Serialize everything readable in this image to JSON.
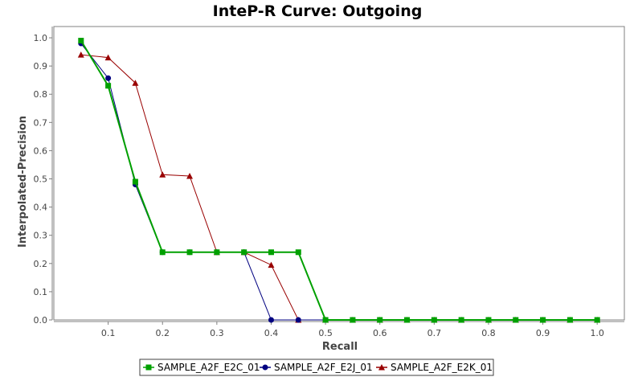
{
  "chart_data": {
    "type": "line",
    "title": "InteP-R Curve: Outgoing",
    "xlabel": "Recall",
    "ylabel": "Interpolated-Precision",
    "xlim": [
      0.0,
      1.05
    ],
    "ylim": [
      0.0,
      1.04
    ],
    "xticks": [
      "0.1",
      "0.2",
      "0.3",
      "0.4",
      "0.5",
      "0.6",
      "0.7",
      "0.8",
      "0.9",
      "1.0"
    ],
    "yticks": [
      "0.0",
      "0.1",
      "0.2",
      "0.3",
      "0.4",
      "0.5",
      "0.6",
      "0.7",
      "0.8",
      "0.9",
      "1.0"
    ],
    "grid": false,
    "legend_position": "bottom",
    "x": [
      0.05,
      0.1,
      0.15,
      0.2,
      0.25,
      0.3,
      0.35,
      0.4,
      0.45,
      0.5,
      0.55,
      0.6,
      0.65,
      0.7,
      0.75,
      0.8,
      0.85,
      0.9,
      0.95,
      1.0
    ],
    "series": [
      {
        "name": "SAMPLE_A2F_E2C_01",
        "color": "#00a000",
        "marker": "square",
        "values": [
          0.99,
          0.83,
          0.49,
          0.24,
          0.24,
          0.24,
          0.24,
          0.24,
          0.24,
          0,
          0,
          0,
          0,
          0,
          0,
          0,
          0,
          0,
          0,
          0
        ]
      },
      {
        "name": "SAMPLE_A2F_E2J_01",
        "color": "#000080",
        "marker": "circle",
        "values": [
          0.98,
          0.857,
          0.48,
          0.24,
          0.24,
          0.24,
          0.24,
          0,
          0,
          0,
          0,
          0,
          0,
          0,
          0,
          0,
          0,
          0,
          0,
          0
        ]
      },
      {
        "name": "SAMPLE_A2F_E2K_01",
        "color": "#990000",
        "marker": "triangle",
        "values": [
          0.94,
          0.93,
          0.84,
          0.515,
          0.51,
          0.24,
          0.24,
          0.195,
          0,
          0,
          0,
          0,
          0,
          0,
          0,
          0,
          0,
          0,
          0,
          0
        ]
      }
    ]
  }
}
